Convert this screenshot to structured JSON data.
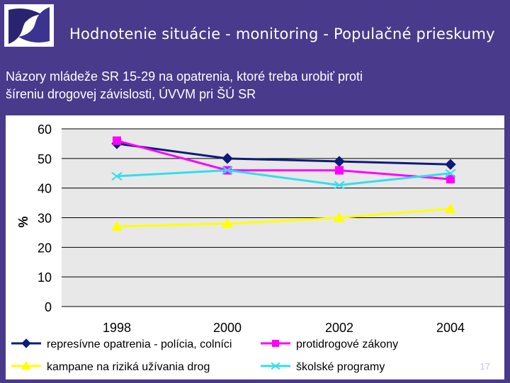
{
  "slide": {
    "title": "Hodnotenie situácie - monitoring - Populačné prieskumy",
    "subtitle_line1": "Názory mládeže SR 15-29 na opatrenia, ktoré treba urobiť proti",
    "subtitle_line2": "šíreniu drogovej závislosti, ÚVVM pri ŠÚ SR",
    "page_number": "17"
  },
  "chart_data": {
    "type": "line",
    "title": "",
    "xlabel": "",
    "ylabel": "%",
    "ylim": [
      0,
      60
    ],
    "yticks": [
      0,
      10,
      20,
      30,
      40,
      50,
      60
    ],
    "categories": [
      "1998",
      "2000",
      "2002",
      "2004"
    ],
    "grid": true,
    "legend_position": "bottom",
    "series": [
      {
        "name": "represívne opatrenia - polícia, colníci",
        "values": [
          55,
          50,
          49,
          48
        ],
        "color": "#0d1b7a",
        "marker": "diamond"
      },
      {
        "name": "protidrogové zákony",
        "values": [
          56,
          46,
          46,
          43
        ],
        "color": "#ff00ff",
        "marker": "square"
      },
      {
        "name": "kampane na riziká užívania drog",
        "values": [
          27,
          28,
          30,
          33
        ],
        "color": "#ffff00",
        "marker": "triangle"
      },
      {
        "name": "školské programy",
        "values": [
          44,
          46,
          41,
          45
        ],
        "color": "#33ddee",
        "marker": "x"
      }
    ]
  }
}
